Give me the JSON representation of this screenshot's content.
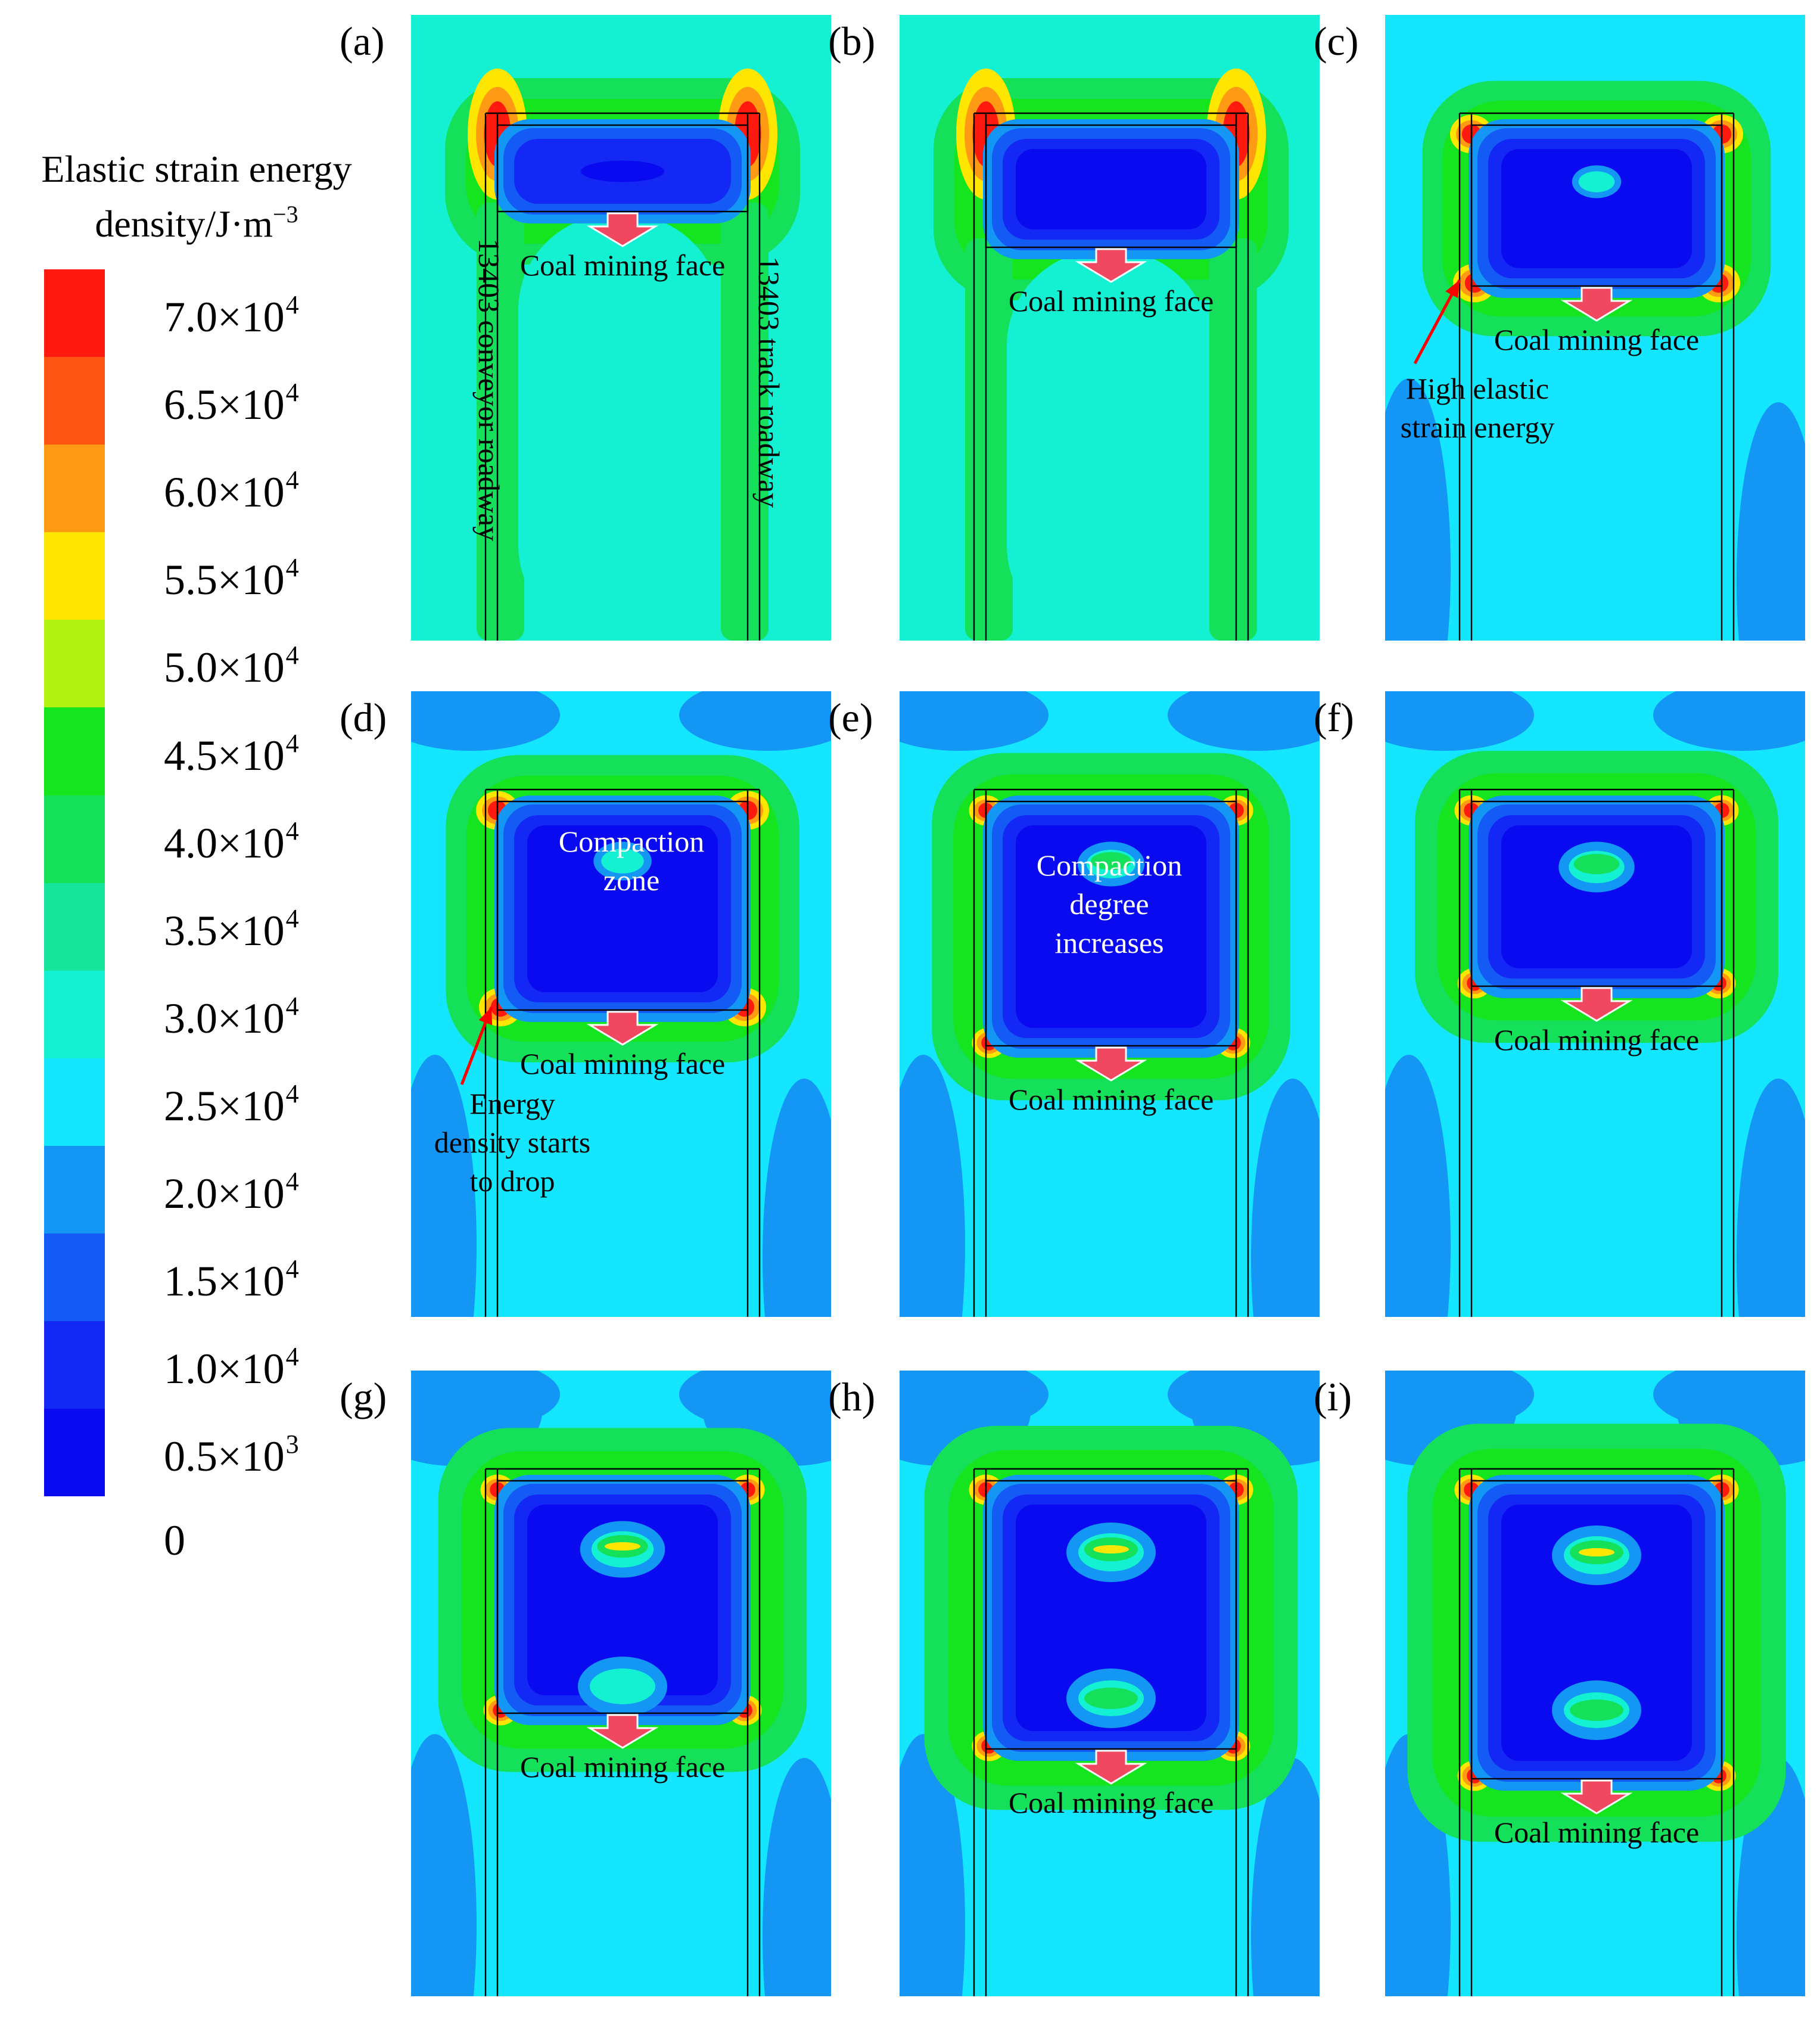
{
  "legend": {
    "title_line1": "Elastic  strain energy",
    "title_line2": "density/J·m",
    "title_exp": "−3",
    "colors": [
      "#ff1a10",
      "#ff5512",
      "#ff9a14",
      "#ffe600",
      "#b4f214",
      "#14e51e",
      "#14e05a",
      "#14e59a",
      "#14f0d2",
      "#14e6ff",
      "#1496f5",
      "#145af5",
      "#1428f5",
      "#0a0af0"
    ],
    "ticks": [
      {
        "mant": "7.0×10",
        "exp": "4"
      },
      {
        "mant": "6.5×10",
        "exp": "4"
      },
      {
        "mant": "6.0×10",
        "exp": "4"
      },
      {
        "mant": "5.5×10",
        "exp": "4"
      },
      {
        "mant": "5.0×10",
        "exp": "4"
      },
      {
        "mant": "4.5×10",
        "exp": "4"
      },
      {
        "mant": "4.0×10",
        "exp": "4"
      },
      {
        "mant": "3.5×10",
        "exp": "4"
      },
      {
        "mant": "3.0×10",
        "exp": "4"
      },
      {
        "mant": "2.5×10",
        "exp": "4"
      },
      {
        "mant": "2.0×10",
        "exp": "4"
      },
      {
        "mant": "1.5×10",
        "exp": "4"
      },
      {
        "mant": "1.0×10",
        "exp": "4"
      },
      {
        "mant": "0.5×10",
        "exp": "3"
      },
      {
        "mant": "0",
        "exp": ""
      }
    ]
  },
  "panels": [
    {
      "label": "(a)",
      "face": "Coal mining face",
      "stage": 0
    },
    {
      "label": "(b)",
      "face": "Coal mining face",
      "stage": 1
    },
    {
      "label": "(c)",
      "face": "Coal mining face",
      "stage": 2
    },
    {
      "label": "(d)",
      "face": "Coal mining face",
      "stage": 3
    },
    {
      "label": "(e)",
      "face": "Coal mining face",
      "stage": 4
    },
    {
      "label": "(f)",
      "face": "Coal mining face",
      "stage": 5
    },
    {
      "label": "(g)",
      "face": "Coal mining face",
      "stage": 6
    },
    {
      "label": "(h)",
      "face": "Coal mining face",
      "stage": 7
    },
    {
      "label": "(i)",
      "face": "Coal mining face",
      "stage": 8
    }
  ],
  "annotations": {
    "conveyor_roadway": "13403 conveyor roadway",
    "track_roadway": "13403 track roadway",
    "high_energy_1": "High elastic",
    "high_energy_2": "strain energy",
    "compaction_zone_1": "Compaction",
    "compaction_zone_2": "zone",
    "energy_drop_1": "Energy",
    "energy_drop_2": "density starts",
    "energy_drop_3": "to drop",
    "compaction_inc_1": "Compaction",
    "compaction_inc_2": "degree",
    "compaction_inc_3": "increases"
  }
}
